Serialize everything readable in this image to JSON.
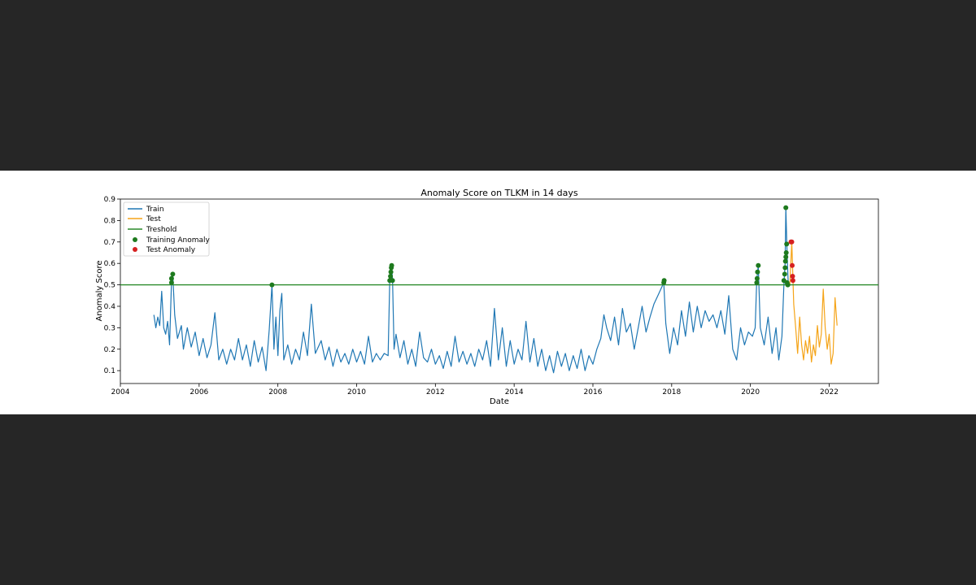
{
  "chart_data": {
    "type": "line",
    "title": "Anomaly Score on TLKM in 14 days",
    "xlabel": "Date",
    "ylabel": "Anomaly Score",
    "x_ticks": [
      "2004",
      "2006",
      "2008",
      "2010",
      "2012",
      "2014",
      "2016",
      "2018",
      "2020",
      "2022"
    ],
    "y_ticks": [
      "0.1",
      "0.2",
      "0.3",
      "0.4",
      "0.5",
      "0.6",
      "0.7",
      "0.8",
      "0.9"
    ],
    "xlim": [
      2004.0,
      2023.25
    ],
    "ylim": [
      0.04,
      0.9
    ],
    "grid": false,
    "legend_position": "upper-left",
    "threshold": 0.5,
    "series": [
      {
        "name": "Train",
        "color": "#1f77b4",
        "points": [
          [
            2004.85,
            0.36
          ],
          [
            2004.9,
            0.3
          ],
          [
            2004.95,
            0.35
          ],
          [
            2005.0,
            0.31
          ],
          [
            2005.05,
            0.47
          ],
          [
            2005.1,
            0.3
          ],
          [
            2005.15,
            0.27
          ],
          [
            2005.2,
            0.33
          ],
          [
            2005.25,
            0.22
          ],
          [
            2005.3,
            0.52
          ],
          [
            2005.33,
            0.55
          ],
          [
            2005.38,
            0.36
          ],
          [
            2005.45,
            0.25
          ],
          [
            2005.55,
            0.31
          ],
          [
            2005.6,
            0.2
          ],
          [
            2005.7,
            0.3
          ],
          [
            2005.8,
            0.21
          ],
          [
            2005.9,
            0.28
          ],
          [
            2006.0,
            0.17
          ],
          [
            2006.1,
            0.25
          ],
          [
            2006.2,
            0.16
          ],
          [
            2006.3,
            0.22
          ],
          [
            2006.4,
            0.37
          ],
          [
            2006.5,
            0.15
          ],
          [
            2006.6,
            0.2
          ],
          [
            2006.7,
            0.13
          ],
          [
            2006.8,
            0.2
          ],
          [
            2006.9,
            0.15
          ],
          [
            2007.0,
            0.25
          ],
          [
            2007.1,
            0.15
          ],
          [
            2007.2,
            0.22
          ],
          [
            2007.3,
            0.12
          ],
          [
            2007.4,
            0.24
          ],
          [
            2007.5,
            0.14
          ],
          [
            2007.6,
            0.21
          ],
          [
            2007.7,
            0.1
          ],
          [
            2007.78,
            0.29
          ],
          [
            2007.85,
            0.5
          ],
          [
            2007.9,
            0.2
          ],
          [
            2007.95,
            0.35
          ],
          [
            2008.0,
            0.17
          ],
          [
            2008.05,
            0.38
          ],
          [
            2008.1,
            0.46
          ],
          [
            2008.15,
            0.15
          ],
          [
            2008.25,
            0.22
          ],
          [
            2008.35,
            0.13
          ],
          [
            2008.45,
            0.2
          ],
          [
            2008.55,
            0.15
          ],
          [
            2008.65,
            0.28
          ],
          [
            2008.75,
            0.17
          ],
          [
            2008.85,
            0.41
          ],
          [
            2008.95,
            0.18
          ],
          [
            2009.1,
            0.24
          ],
          [
            2009.2,
            0.15
          ],
          [
            2009.3,
            0.21
          ],
          [
            2009.4,
            0.12
          ],
          [
            2009.5,
            0.2
          ],
          [
            2009.6,
            0.14
          ],
          [
            2009.7,
            0.18
          ],
          [
            2009.8,
            0.13
          ],
          [
            2009.9,
            0.2
          ],
          [
            2010.0,
            0.14
          ],
          [
            2010.1,
            0.19
          ],
          [
            2010.2,
            0.13
          ],
          [
            2010.3,
            0.26
          ],
          [
            2010.4,
            0.14
          ],
          [
            2010.5,
            0.18
          ],
          [
            2010.6,
            0.15
          ],
          [
            2010.7,
            0.18
          ],
          [
            2010.8,
            0.17
          ],
          [
            2010.84,
            0.52
          ],
          [
            2010.88,
            0.59
          ],
          [
            2010.91,
            0.53
          ],
          [
            2010.95,
            0.2
          ],
          [
            2011.0,
            0.27
          ],
          [
            2011.1,
            0.16
          ],
          [
            2011.2,
            0.24
          ],
          [
            2011.3,
            0.13
          ],
          [
            2011.4,
            0.2
          ],
          [
            2011.5,
            0.12
          ],
          [
            2011.6,
            0.28
          ],
          [
            2011.7,
            0.16
          ],
          [
            2011.8,
            0.14
          ],
          [
            2011.9,
            0.2
          ],
          [
            2012.0,
            0.13
          ],
          [
            2012.1,
            0.17
          ],
          [
            2012.2,
            0.11
          ],
          [
            2012.3,
            0.19
          ],
          [
            2012.4,
            0.12
          ],
          [
            2012.5,
            0.26
          ],
          [
            2012.6,
            0.14
          ],
          [
            2012.7,
            0.19
          ],
          [
            2012.8,
            0.13
          ],
          [
            2012.9,
            0.18
          ],
          [
            2013.0,
            0.12
          ],
          [
            2013.1,
            0.2
          ],
          [
            2013.2,
            0.15
          ],
          [
            2013.3,
            0.24
          ],
          [
            2013.4,
            0.12
          ],
          [
            2013.5,
            0.39
          ],
          [
            2013.6,
            0.15
          ],
          [
            2013.7,
            0.3
          ],
          [
            2013.8,
            0.12
          ],
          [
            2013.9,
            0.24
          ],
          [
            2014.0,
            0.13
          ],
          [
            2014.1,
            0.2
          ],
          [
            2014.2,
            0.15
          ],
          [
            2014.3,
            0.33
          ],
          [
            2014.4,
            0.14
          ],
          [
            2014.5,
            0.25
          ],
          [
            2014.6,
            0.12
          ],
          [
            2014.7,
            0.2
          ],
          [
            2014.8,
            0.1
          ],
          [
            2014.9,
            0.17
          ],
          [
            2015.0,
            0.09
          ],
          [
            2015.1,
            0.19
          ],
          [
            2015.2,
            0.12
          ],
          [
            2015.3,
            0.18
          ],
          [
            2015.4,
            0.1
          ],
          [
            2015.5,
            0.17
          ],
          [
            2015.6,
            0.11
          ],
          [
            2015.7,
            0.2
          ],
          [
            2015.8,
            0.1
          ],
          [
            2015.9,
            0.17
          ],
          [
            2016.0,
            0.13
          ],
          [
            2016.1,
            0.2
          ],
          [
            2016.2,
            0.25
          ],
          [
            2016.28,
            0.36
          ],
          [
            2016.35,
            0.3
          ],
          [
            2016.45,
            0.24
          ],
          [
            2016.55,
            0.35
          ],
          [
            2016.65,
            0.22
          ],
          [
            2016.75,
            0.39
          ],
          [
            2016.85,
            0.28
          ],
          [
            2016.95,
            0.32
          ],
          [
            2017.05,
            0.2
          ],
          [
            2017.15,
            0.3
          ],
          [
            2017.25,
            0.4
          ],
          [
            2017.35,
            0.28
          ],
          [
            2017.45,
            0.35
          ],
          [
            2017.55,
            0.41
          ],
          [
            2017.65,
            0.45
          ],
          [
            2017.75,
            0.49
          ],
          [
            2017.8,
            0.51
          ],
          [
            2017.85,
            0.32
          ],
          [
            2017.95,
            0.18
          ],
          [
            2018.05,
            0.3
          ],
          [
            2018.15,
            0.22
          ],
          [
            2018.25,
            0.38
          ],
          [
            2018.35,
            0.26
          ],
          [
            2018.45,
            0.42
          ],
          [
            2018.55,
            0.28
          ],
          [
            2018.65,
            0.4
          ],
          [
            2018.75,
            0.3
          ],
          [
            2018.85,
            0.38
          ],
          [
            2018.95,
            0.33
          ],
          [
            2019.05,
            0.36
          ],
          [
            2019.15,
            0.3
          ],
          [
            2019.25,
            0.38
          ],
          [
            2019.35,
            0.27
          ],
          [
            2019.45,
            0.45
          ],
          [
            2019.55,
            0.2
          ],
          [
            2019.65,
            0.15
          ],
          [
            2019.75,
            0.3
          ],
          [
            2019.85,
            0.22
          ],
          [
            2019.95,
            0.28
          ],
          [
            2020.05,
            0.26
          ],
          [
            2020.12,
            0.3
          ],
          [
            2020.16,
            0.52
          ],
          [
            2020.2,
            0.59
          ],
          [
            2020.25,
            0.3
          ],
          [
            2020.35,
            0.22
          ],
          [
            2020.45,
            0.35
          ],
          [
            2020.55,
            0.18
          ],
          [
            2020.65,
            0.3
          ],
          [
            2020.72,
            0.15
          ],
          [
            2020.8,
            0.26
          ],
          [
            2020.85,
            0.5
          ],
          [
            2020.88,
            0.6
          ],
          [
            2020.9,
            0.86
          ],
          [
            2020.93,
            0.65
          ],
          [
            2020.96,
            0.51
          ],
          [
            2020.99,
            0.5
          ]
        ]
      },
      {
        "name": "Test",
        "color": "#f5a418",
        "points": [
          [
            2021.0,
            0.5
          ],
          [
            2021.05,
            0.7
          ],
          [
            2021.1,
            0.41
          ],
          [
            2021.15,
            0.3
          ],
          [
            2021.2,
            0.18
          ],
          [
            2021.25,
            0.35
          ],
          [
            2021.3,
            0.22
          ],
          [
            2021.35,
            0.15
          ],
          [
            2021.4,
            0.24
          ],
          [
            2021.45,
            0.18
          ],
          [
            2021.5,
            0.26
          ],
          [
            2021.55,
            0.14
          ],
          [
            2021.6,
            0.22
          ],
          [
            2021.65,
            0.17
          ],
          [
            2021.7,
            0.31
          ],
          [
            2021.75,
            0.21
          ],
          [
            2021.8,
            0.27
          ],
          [
            2021.85,
            0.48
          ],
          [
            2021.9,
            0.3
          ],
          [
            2021.95,
            0.2
          ],
          [
            2022.0,
            0.27
          ],
          [
            2022.05,
            0.13
          ],
          [
            2022.1,
            0.18
          ],
          [
            2022.15,
            0.44
          ],
          [
            2022.2,
            0.31
          ]
        ]
      }
    ],
    "threshold_series": {
      "name": "Treshold",
      "color": "#2a8a2a"
    },
    "anomalies": [
      {
        "name": "Training Anomaly",
        "color": "#1e7a1e",
        "points": [
          [
            2005.3,
            0.51
          ],
          [
            2005.3,
            0.53
          ],
          [
            2005.33,
            0.55
          ],
          [
            2007.85,
            0.5
          ],
          [
            2010.84,
            0.52
          ],
          [
            2010.86,
            0.54
          ],
          [
            2010.87,
            0.56
          ],
          [
            2010.88,
            0.58
          ],
          [
            2010.89,
            0.59
          ],
          [
            2010.91,
            0.52
          ],
          [
            2017.8,
            0.51
          ],
          [
            2017.81,
            0.52
          ],
          [
            2020.16,
            0.51
          ],
          [
            2020.17,
            0.53
          ],
          [
            2020.18,
            0.56
          ],
          [
            2020.2,
            0.59
          ],
          [
            2020.85,
            0.52
          ],
          [
            2020.87,
            0.55
          ],
          [
            2020.88,
            0.58
          ],
          [
            2020.89,
            0.61
          ],
          [
            2020.9,
            0.63
          ],
          [
            2020.91,
            0.65
          ],
          [
            2020.92,
            0.69
          ],
          [
            2020.93,
            0.51
          ],
          [
            2020.95,
            0.5
          ],
          [
            2020.9,
            0.86
          ]
        ]
      },
      {
        "name": "Test Anomaly",
        "color": "#d62020",
        "points": [
          [
            2021.03,
            0.7
          ],
          [
            2021.05,
            0.7
          ],
          [
            2021.06,
            0.59
          ],
          [
            2021.07,
            0.54
          ],
          [
            2021.08,
            0.52
          ]
        ]
      }
    ]
  }
}
